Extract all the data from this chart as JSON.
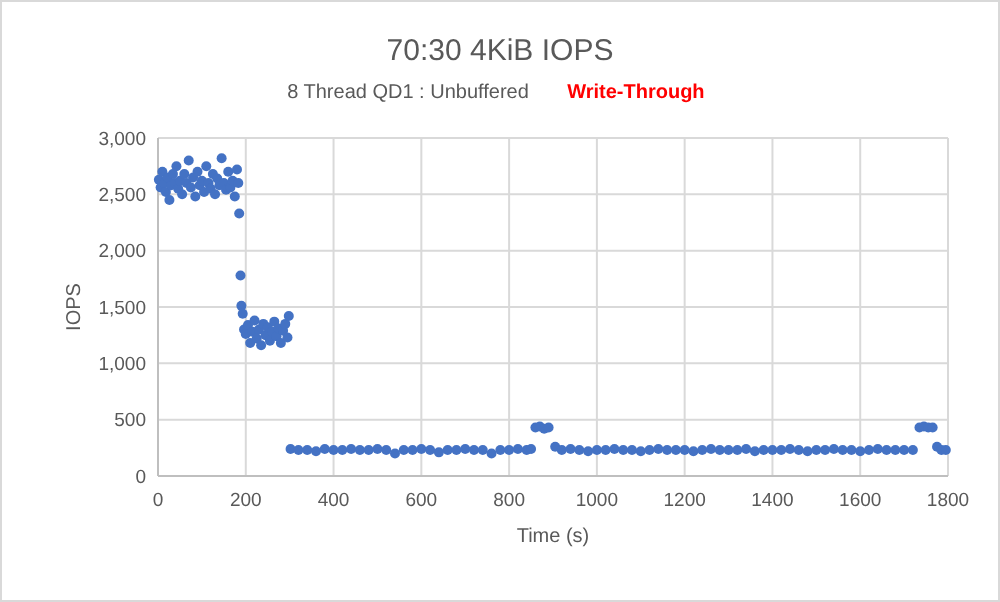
{
  "chart_data": {
    "type": "scatter",
    "title": "70:30 4KiB IOPS",
    "subtitle": "8 Thread QD1 : Unbuffered",
    "annotations": [
      "Write-Through"
    ],
    "xlabel": "Time (s)",
    "ylabel": "IOPS",
    "xlim": [
      0,
      1800
    ],
    "xticks": [
      0,
      200,
      400,
      600,
      800,
      1000,
      1200,
      1400,
      1600,
      1800
    ],
    "ylim": [
      0,
      3000
    ],
    "yticks": [
      {
        "value": 0,
        "label": "0"
      },
      {
        "value": 500,
        "label": "500"
      },
      {
        "value": 1000,
        "label": "1,000"
      },
      {
        "value": 1500,
        "label": "1,500"
      },
      {
        "value": 2000,
        "label": "2,000"
      },
      {
        "value": 2500,
        "label": "2,500"
      },
      {
        "value": 3000,
        "label": "3,000"
      }
    ],
    "grid": true,
    "marker": "circle",
    "series": [
      {
        "color": "#4472c4",
        "x": [
          2,
          6,
          10,
          14,
          18,
          22,
          26,
          30,
          34,
          38,
          42,
          46,
          50,
          55,
          60,
          65,
          70,
          75,
          80,
          85,
          90,
          95,
          100,
          105,
          110,
          115,
          120,
          125,
          130,
          135,
          140,
          145,
          150,
          155,
          160,
          165,
          170,
          175,
          180,
          183,
          185,
          188,
          190,
          193,
          196,
          200,
          205,
          210,
          215,
          220,
          225,
          230,
          235,
          240,
          245,
          250,
          255,
          260,
          265,
          270,
          275,
          280,
          285,
          290,
          295,
          298,
          302,
          320,
          340,
          360,
          380,
          400,
          420,
          440,
          460,
          480,
          500,
          520,
          540,
          560,
          580,
          600,
          620,
          640,
          660,
          680,
          700,
          720,
          740,
          760,
          780,
          800,
          820,
          840,
          850,
          860,
          870,
          880,
          890,
          905,
          920,
          940,
          960,
          980,
          1000,
          1020,
          1040,
          1060,
          1080,
          1100,
          1120,
          1140,
          1160,
          1180,
          1200,
          1220,
          1240,
          1260,
          1280,
          1300,
          1320,
          1340,
          1360,
          1380,
          1400,
          1420,
          1440,
          1460,
          1480,
          1500,
          1520,
          1540,
          1560,
          1580,
          1600,
          1620,
          1640,
          1660,
          1680,
          1700,
          1720,
          1735,
          1745,
          1755,
          1765,
          1775,
          1785,
          1795
        ],
        "values": [
          2630,
          2560,
          2700,
          2600,
          2520,
          2650,
          2450,
          2580,
          2680,
          2600,
          2750,
          2550,
          2620,
          2500,
          2680,
          2600,
          2800,
          2560,
          2650,
          2480,
          2700,
          2580,
          2620,
          2520,
          2750,
          2600,
          2550,
          2680,
          2500,
          2640,
          2580,
          2820,
          2600,
          2540,
          2700,
          2560,
          2620,
          2480,
          2720,
          2600,
          2330,
          1780,
          1510,
          1440,
          1300,
          1260,
          1340,
          1180,
          1280,
          1380,
          1220,
          1300,
          1160,
          1350,
          1250,
          1320,
          1200,
          1280,
          1370,
          1240,
          1310,
          1180,
          1290,
          1350,
          1230,
          1420,
          240,
          230,
          230,
          220,
          240,
          230,
          230,
          240,
          230,
          230,
          240,
          230,
          200,
          230,
          230,
          240,
          230,
          210,
          230,
          230,
          240,
          230,
          230,
          200,
          230,
          230,
          240,
          230,
          240,
          430,
          440,
          420,
          430,
          260,
          230,
          240,
          230,
          220,
          230,
          230,
          240,
          230,
          230,
          220,
          230,
          240,
          230,
          230,
          230,
          220,
          230,
          240,
          230,
          230,
          230,
          240,
          220,
          230,
          230,
          230,
          240,
          230,
          220,
          230,
          230,
          240,
          230,
          230,
          220,
          230,
          240,
          230,
          230,
          230,
          230,
          430,
          440,
          430,
          430,
          260,
          230,
          230
        ]
      }
    ]
  }
}
